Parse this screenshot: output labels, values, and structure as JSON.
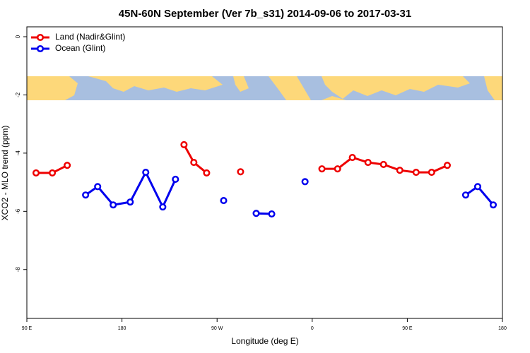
{
  "chart_data": {
    "type": "line",
    "title": "45N-60N September (Ver 7b_s31)   2014-09-06 to 2017-03-31",
    "xlabel": "Longitude (deg E)",
    "ylabel": "XCO2 - MLO trend (ppm)",
    "xlim": [
      90,
      540
    ],
    "ylim": [
      -9.68,
      0.34
    ],
    "xticks": [
      {
        "value": 90,
        "label": "90 E"
      },
      {
        "value": 180,
        "label": "180"
      },
      {
        "value": 270,
        "label": "90 W"
      },
      {
        "value": 360,
        "label": "0"
      },
      {
        "value": 450,
        "label": "90 E"
      },
      {
        "value": 540,
        "label": "180"
      }
    ],
    "yticks": [
      0,
      -2,
      -4,
      -6,
      -8
    ],
    "legend": "top-left",
    "series": [
      {
        "name": "Land (Nadir&Glint)",
        "color": "#ee0000",
        "x": [
          98.7,
          114.1,
          128.2,
          null,
          238.7,
          248.0,
          260.1,
          null,
          292.2,
          null,
          369.2,
          384.0,
          398.0,
          412.8,
          427.5,
          442.9,
          458.3,
          473.0,
          487.8
        ],
        "values": [
          -4.68,
          -4.68,
          -4.42,
          null,
          -3.71,
          -4.32,
          -4.68,
          null,
          -4.64,
          null,
          -4.54,
          -4.54,
          -4.15,
          -4.32,
          -4.39,
          -4.59,
          -4.66,
          -4.66,
          -4.42
        ]
      },
      {
        "name": "Ocean (Glint)",
        "color": "#0000ee",
        "x": [
          145.6,
          157.0,
          171.7,
          187.8,
          202.5,
          218.6,
          230.6,
          null,
          276.2,
          null,
          307.0,
          321.7,
          null,
          353.2,
          null,
          505.2,
          516.6,
          531.3
        ],
        "values": [
          -5.44,
          -5.15,
          -5.78,
          -5.68,
          -4.66,
          -5.85,
          -4.9,
          null,
          -5.63,
          null,
          -6.07,
          -6.09,
          null,
          -4.98,
          null,
          -5.44,
          -5.15,
          -5.78
        ]
      }
    ]
  }
}
